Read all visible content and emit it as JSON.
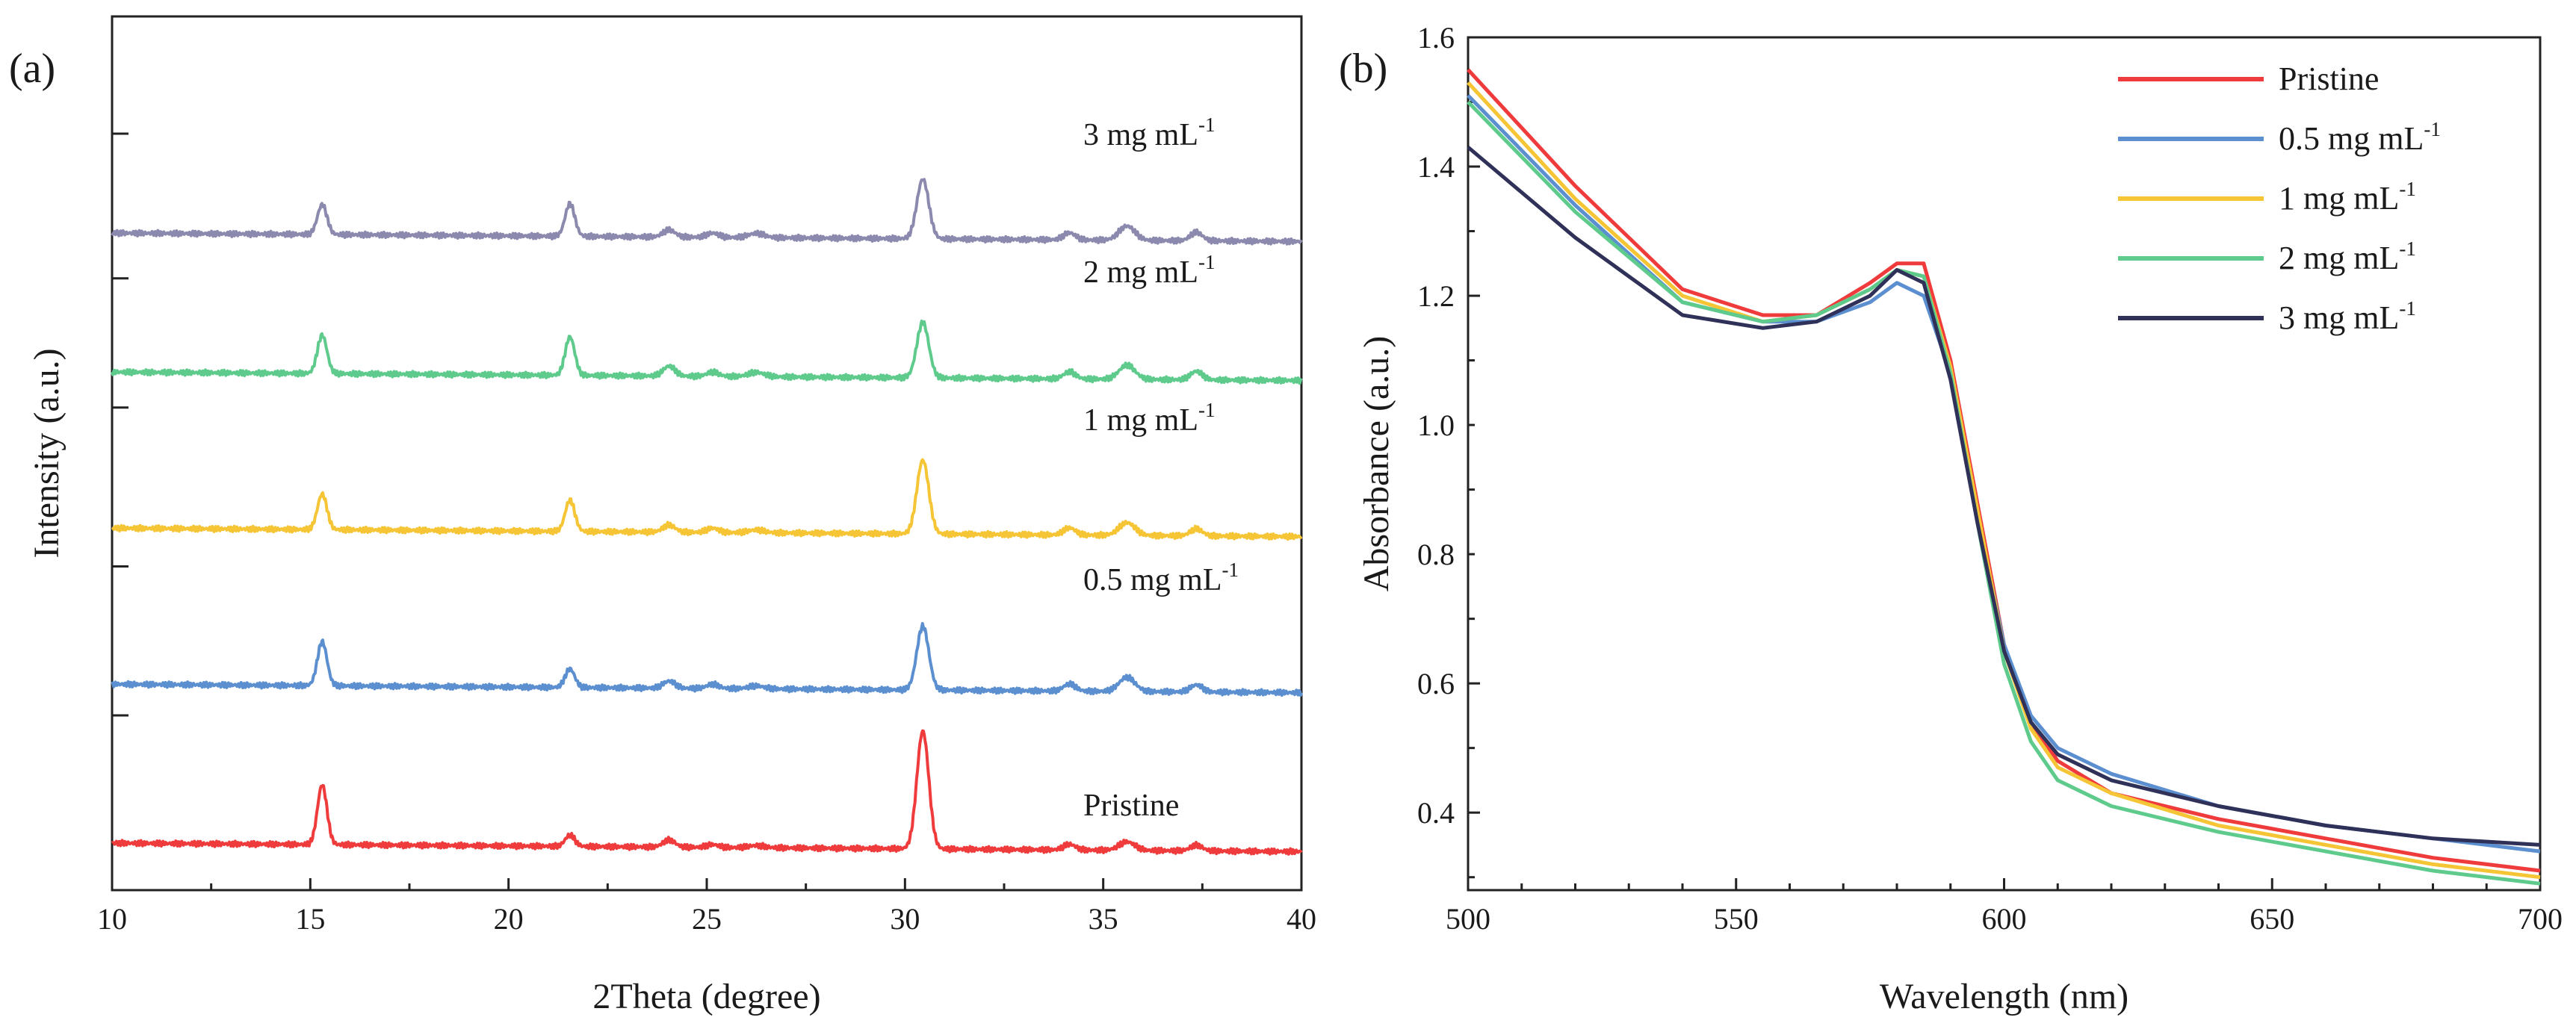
{
  "chart_data": [
    {
      "type": "line",
      "panel_label": "(a)",
      "xlabel": "2Theta (degree)",
      "ylabel": "Intensity (a.u.)",
      "xlim": [
        10,
        40
      ],
      "x_ticks": [
        10,
        15,
        20,
        25,
        30,
        35,
        40
      ],
      "y_ticks_labeled": false,
      "peaks": [
        {
          "pos": 15.3,
          "width": 0.12
        },
        {
          "pos": 21.55,
          "width": 0.12
        },
        {
          "pos": 24.05,
          "width": 0.15
        },
        {
          "pos": 25.15,
          "width": 0.15
        },
        {
          "pos": 26.25,
          "width": 0.2
        },
        {
          "pos": 30.45,
          "width": 0.15
        },
        {
          "pos": 34.15,
          "width": 0.15
        },
        {
          "pos": 35.6,
          "width": 0.2
        },
        {
          "pos": 37.35,
          "width": 0.15
        }
      ],
      "series": [
        {
          "name": "Pristine",
          "label_text": "Pristine",
          "label_sup": "",
          "color": "#ef3b3b",
          "baseline_start": 0.1,
          "baseline_end": 0.04,
          "peak_heights": [
            0.42,
            0.08,
            0.05,
            0.02,
            0.015,
            0.83,
            0.04,
            0.06,
            0.04
          ]
        },
        {
          "name": "0.5 mg mL-1",
          "label_text": "0.5 mg mL",
          "label_sup": "-1",
          "color": "#5b8fd0",
          "baseline_start": 1.22,
          "baseline_end": 1.16,
          "peak_heights": [
            0.31,
            0.13,
            0.05,
            0.03,
            0.02,
            0.45,
            0.05,
            0.1,
            0.05
          ]
        },
        {
          "name": "1 mg mL-1",
          "label_text": "1 mg mL",
          "label_sup": "-1",
          "color": "#f5c536",
          "baseline_start": 2.32,
          "baseline_end": 2.26,
          "peak_heights": [
            0.25,
            0.22,
            0.05,
            0.03,
            0.02,
            0.52,
            0.05,
            0.09,
            0.05
          ]
        },
        {
          "name": "2 mg mL-1",
          "label_text": "2 mg mL",
          "label_sup": "-1",
          "color": "#5ecb8c",
          "baseline_start": 3.42,
          "baseline_end": 3.36,
          "peak_heights": [
            0.27,
            0.27,
            0.07,
            0.03,
            0.03,
            0.39,
            0.05,
            0.1,
            0.06
          ]
        },
        {
          "name": "3 mg mL-1",
          "label_text": "3 mg mL",
          "label_sup": "-1",
          "color": "#8b8aae",
          "baseline_start": 4.4,
          "baseline_end": 4.34,
          "peak_heights": [
            0.21,
            0.23,
            0.05,
            0.03,
            0.03,
            0.42,
            0.05,
            0.1,
            0.06
          ]
        }
      ]
    },
    {
      "type": "line",
      "panel_label": "(b)",
      "xlabel": "Wavelength (nm)",
      "ylabel": "Absorbance (a.u.)",
      "xlim": [
        500,
        700
      ],
      "ylim": [
        0.28,
        1.6
      ],
      "x_ticks": [
        500,
        550,
        600,
        650,
        700
      ],
      "y_ticks": [
        0.4,
        0.6,
        0.8,
        1.0,
        1.2,
        1.4,
        1.6
      ],
      "legend_position": "top-right",
      "series": [
        {
          "name": "Pristine",
          "label_text": "Pristine",
          "label_sup": "",
          "color": "#ef3b3b",
          "x": [
            500,
            520,
            540,
            555,
            565,
            575,
            580,
            585,
            590,
            595,
            600,
            605,
            610,
            620,
            640,
            660,
            680,
            700
          ],
          "y": [
            1.55,
            1.37,
            1.21,
            1.17,
            1.17,
            1.22,
            1.25,
            1.25,
            1.1,
            0.88,
            0.66,
            0.54,
            0.48,
            0.43,
            0.39,
            0.36,
            0.33,
            0.31
          ]
        },
        {
          "name": "0.5 mg mL-1",
          "label_text": "0.5 mg mL",
          "label_sup": "-1",
          "color": "#5b8fd0",
          "x": [
            500,
            520,
            540,
            555,
            565,
            575,
            580,
            585,
            590,
            595,
            600,
            605,
            610,
            620,
            640,
            660,
            680,
            700
          ],
          "y": [
            1.51,
            1.34,
            1.19,
            1.16,
            1.16,
            1.19,
            1.22,
            1.2,
            1.08,
            0.86,
            0.66,
            0.55,
            0.5,
            0.46,
            0.41,
            0.38,
            0.36,
            0.34
          ]
        },
        {
          "name": "1 mg mL-1",
          "label_text": "1 mg mL",
          "label_sup": "-1",
          "color": "#f5c536",
          "x": [
            500,
            520,
            540,
            555,
            565,
            575,
            580,
            585,
            590,
            595,
            600,
            605,
            610,
            620,
            640,
            660,
            680,
            700
          ],
          "y": [
            1.53,
            1.35,
            1.2,
            1.16,
            1.17,
            1.21,
            1.24,
            1.23,
            1.09,
            0.87,
            0.65,
            0.53,
            0.47,
            0.43,
            0.38,
            0.35,
            0.32,
            0.3
          ]
        },
        {
          "name": "2 mg mL-1",
          "label_text": "2 mg mL",
          "label_sup": "-1",
          "color": "#5ecb8c",
          "x": [
            500,
            520,
            540,
            555,
            565,
            575,
            580,
            585,
            590,
            595,
            600,
            605,
            610,
            620,
            640,
            660,
            680,
            700
          ],
          "y": [
            1.5,
            1.33,
            1.19,
            1.16,
            1.17,
            1.21,
            1.24,
            1.23,
            1.08,
            0.85,
            0.63,
            0.51,
            0.45,
            0.41,
            0.37,
            0.34,
            0.31,
            0.29
          ]
        },
        {
          "name": "3 mg mL-1",
          "label_text": "3 mg mL",
          "label_sup": "-1",
          "color": "#2f3158",
          "x": [
            500,
            520,
            540,
            555,
            565,
            575,
            580,
            585,
            590,
            595,
            600,
            605,
            610,
            620,
            640,
            660,
            680,
            700
          ],
          "y": [
            1.43,
            1.29,
            1.17,
            1.15,
            1.16,
            1.2,
            1.24,
            1.22,
            1.07,
            0.85,
            0.65,
            0.54,
            0.49,
            0.45,
            0.41,
            0.38,
            0.36,
            0.35
          ]
        }
      ]
    }
  ]
}
